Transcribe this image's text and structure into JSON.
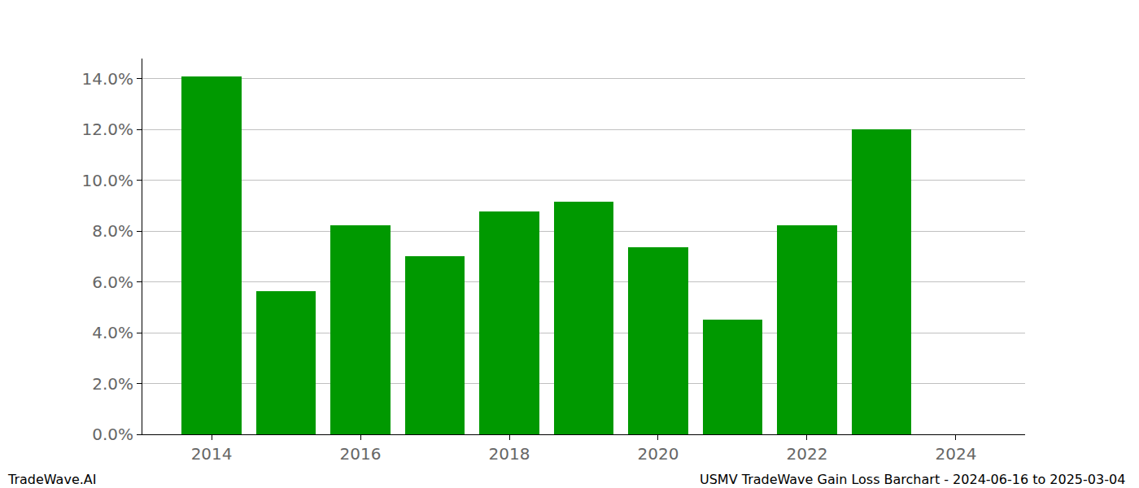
{
  "chart_data": {
    "type": "bar",
    "x": [
      2014,
      2015,
      2016,
      2017,
      2018,
      2019,
      2020,
      2021,
      2022,
      2023
    ],
    "values": [
      14.1,
      5.64,
      8.24,
      7.02,
      8.78,
      9.17,
      7.37,
      4.52,
      8.24,
      12.02
    ],
    "color": "#009900",
    "xlim": [
      2013.07,
      2024.93
    ],
    "xticks": [
      2014,
      2016,
      2018,
      2020,
      2022,
      2024
    ],
    "ylim": [
      0,
      14.8
    ],
    "yticks": [
      {
        "value": 0,
        "label": "0.0%"
      },
      {
        "value": 2,
        "label": "2.0%"
      },
      {
        "value": 4,
        "label": "4.0%"
      },
      {
        "value": 6,
        "label": "6.0%"
      },
      {
        "value": 8,
        "label": "8.0%"
      },
      {
        "value": 10,
        "label": "10.0%"
      },
      {
        "value": 12,
        "label": "12.0%"
      },
      {
        "value": 14,
        "label": "14.0%"
      }
    ],
    "grid": true,
    "annotations": [
      "TradeWave.AI",
      "USMV TradeWave Gain Loss Barchart - 2024-06-16 to 2025-03-04"
    ]
  }
}
